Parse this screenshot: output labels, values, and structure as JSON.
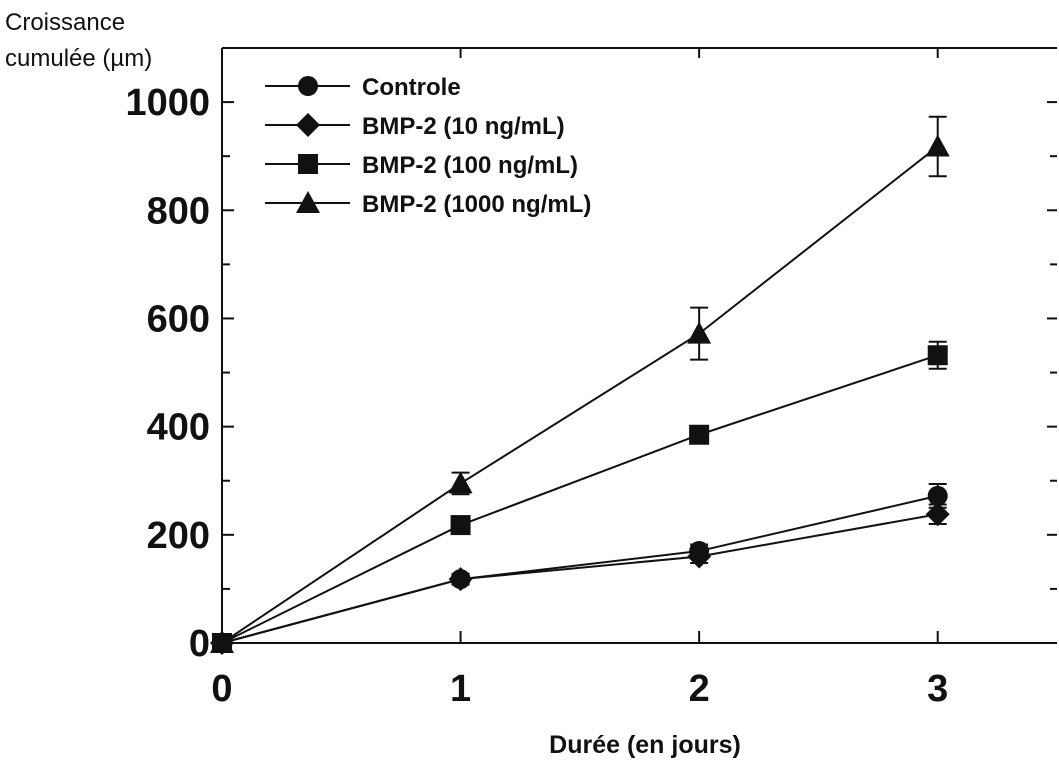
{
  "chart_data": {
    "type": "line",
    "ylabel_lines": [
      "Croissance",
      "cumulée (µm)"
    ],
    "xlabel": "Durée (en jours)",
    "x": [
      0,
      1,
      2,
      3
    ],
    "xlim": [
      0,
      3.5
    ],
    "ylim": [
      0,
      1100
    ],
    "x_ticks": [
      0,
      1,
      2,
      3
    ],
    "y_ticks": [
      0,
      200,
      400,
      600,
      800,
      1000
    ],
    "x_tick_labels": [
      "0",
      "1",
      "2",
      "3"
    ],
    "y_tick_labels": [
      "0",
      "200",
      "400",
      "600",
      "800",
      "1000"
    ],
    "grid": false,
    "legend_position": "top-left",
    "series": [
      {
        "name": "Controle",
        "marker": "circle",
        "values": [
          0,
          118,
          170,
          272
        ],
        "errors": [
          0,
          10,
          12,
          22
        ]
      },
      {
        "name": "BMP-2 (10 ng/mL)",
        "marker": "diamond",
        "values": [
          0,
          118,
          160,
          238
        ],
        "errors": [
          0,
          8,
          12,
          18
        ]
      },
      {
        "name": "BMP-2 (100 ng/mL)",
        "marker": "square",
        "values": [
          0,
          218,
          385,
          532
        ],
        "errors": [
          0,
          10,
          15,
          25
        ]
      },
      {
        "name": "BMP-2 (1000 ng/mL)",
        "marker": "triangle",
        "values": [
          0,
          295,
          572,
          918
        ],
        "errors": [
          0,
          20,
          48,
          55
        ]
      }
    ]
  }
}
